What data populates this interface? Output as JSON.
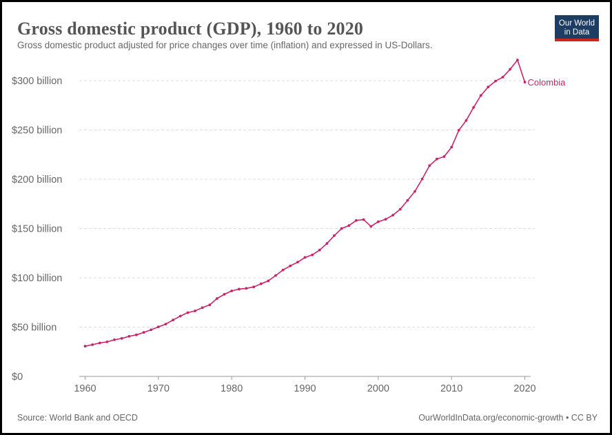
{
  "header": {
    "title": "Gross domestic product (GDP), 1960 to 2020",
    "subtitle": "Gross domestic product adjusted for price changes over time (inflation) and expressed in US-Dollars.",
    "logo_line1": "Our World",
    "logo_line2": "in Data"
  },
  "footer": {
    "source": "Source: World Bank and OECD",
    "credit": "OurWorldInData.org/economic-growth • CC BY"
  },
  "colors": {
    "series": "#c8236a",
    "grid": "#dddddd",
    "axis": "#666666",
    "logo_bg": "#1d3d63",
    "logo_accent": "#ce261e"
  },
  "chart_data": {
    "type": "line",
    "title": "Gross domestic product (GDP), 1960 to 2020",
    "xlabel": "",
    "ylabel": "",
    "xlim": [
      1960,
      2020
    ],
    "ylim": [
      0,
      320
    ],
    "x_ticks": [
      1960,
      1970,
      1980,
      1990,
      2000,
      2010,
      2020
    ],
    "x_tick_labels": [
      "1960",
      "1970",
      "1980",
      "1990",
      "2000",
      "2010",
      "2020"
    ],
    "y_ticks": [
      0,
      50,
      100,
      150,
      200,
      250,
      300
    ],
    "y_tick_labels": [
      "$0",
      "$50 billion",
      "$100 billion",
      "$150 billion",
      "$200 billion",
      "$250 billion",
      "$300 billion"
    ],
    "grid": "horizontal dashed",
    "legend": "inline label at line end",
    "series": [
      {
        "name": "Colombia",
        "x": [
          1960,
          1961,
          1962,
          1963,
          1964,
          1965,
          1966,
          1967,
          1968,
          1969,
          1970,
          1971,
          1972,
          1973,
          1974,
          1975,
          1976,
          1977,
          1978,
          1979,
          1980,
          1981,
          1982,
          1983,
          1984,
          1985,
          1986,
          1987,
          1988,
          1989,
          1990,
          1991,
          1992,
          1993,
          1994,
          1995,
          1996,
          1997,
          1998,
          1999,
          2000,
          2001,
          2002,
          2003,
          2004,
          2005,
          2006,
          2007,
          2008,
          2009,
          2010,
          2011,
          2012,
          2013,
          2014,
          2015,
          2016,
          2017,
          2018,
          2019,
          2020
        ],
        "values": [
          30.6,
          32.2,
          33.9,
          35.0,
          37.1,
          38.5,
          40.6,
          42.2,
          44.6,
          47.3,
          50.2,
          53.1,
          57.2,
          61.2,
          64.7,
          66.4,
          69.7,
          72.5,
          79.0,
          83.3,
          86.7,
          88.5,
          89.3,
          90.8,
          93.9,
          96.9,
          102.4,
          108.0,
          112.1,
          115.9,
          120.7,
          123.2,
          128.2,
          134.8,
          142.8,
          150.1,
          153.0,
          158.2,
          159.0,
          152.2,
          156.9,
          159.4,
          163.6,
          169.6,
          178.6,
          187.7,
          200.3,
          213.9,
          220.5,
          223.0,
          232.6,
          249.7,
          259.6,
          272.8,
          285.0,
          293.6,
          299.6,
          303.6,
          311.6,
          321.0,
          298.5
        ]
      }
    ]
  }
}
